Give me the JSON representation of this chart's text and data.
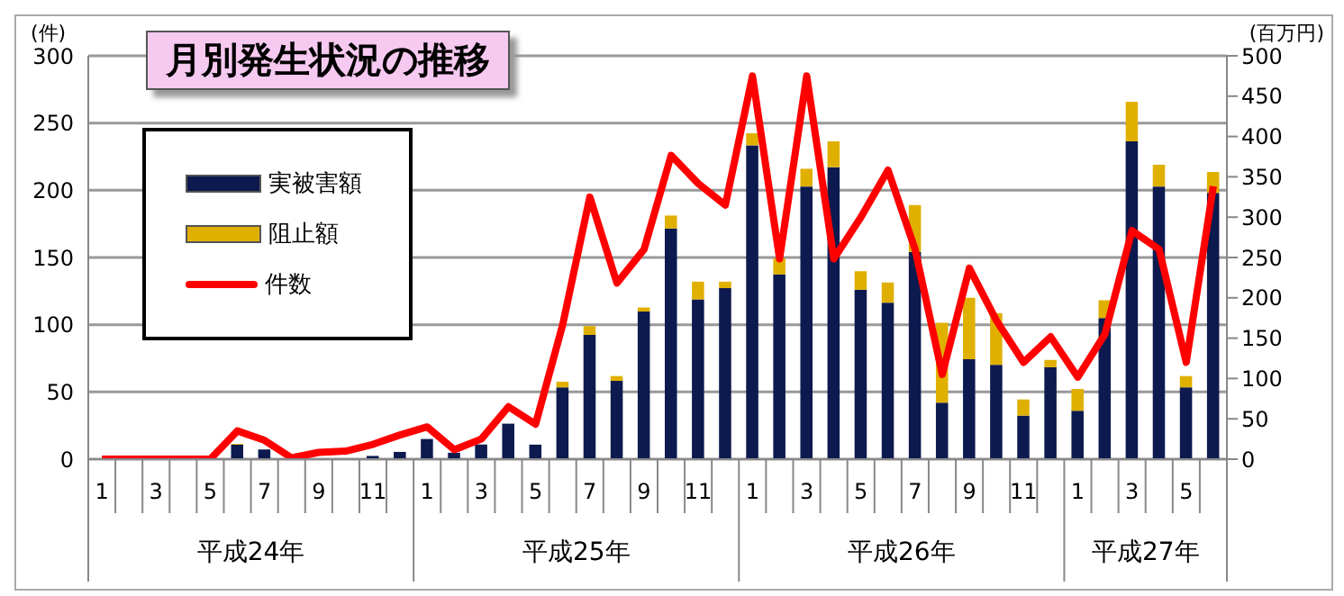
{
  "chart_data": {
    "type": "bar",
    "title": "月別発生状況の推移",
    "ylabel": "(件)",
    "y2label": "(百万円)",
    "categories": [
      "1",
      null,
      "3",
      null,
      "5",
      null,
      "7",
      null,
      "9",
      null,
      "11",
      null,
      "1",
      null,
      "3",
      null,
      "5",
      null,
      "7",
      null,
      "9",
      null,
      "11",
      null,
      "1",
      null,
      "3",
      null,
      "5",
      null,
      "7",
      null,
      "9",
      null,
      "11",
      null,
      "1",
      null,
      "3",
      null,
      "5",
      null
    ],
    "annotations": [
      "平成24年",
      "平成25年",
      "平成26年",
      "平成27年"
    ],
    "stacked": true,
    "series": [
      {
        "name": "実被害額",
        "color": "#0d1a4f",
        "axis": "y2",
        "values": [
          0,
          0,
          0,
          0,
          0,
          18,
          12,
          0,
          0,
          null,
          4,
          9,
          25,
          8,
          18,
          44,
          18,
          89,
          154,
          97,
          183,
          286,
          198,
          212,
          389,
          229,
          338,
          362,
          210,
          194,
          257,
          70,
          124,
          117,
          54,
          114,
          60,
          175,
          394,
          338,
          89,
          330
        ]
      },
      {
        "name": "阻止額",
        "color": "#e0b000",
        "axis": "y2",
        "values": [
          0,
          0,
          0,
          0,
          0,
          1,
          0,
          0,
          0,
          0,
          0,
          0,
          0,
          0,
          0,
          0,
          0,
          7,
          11,
          6,
          5,
          16,
          22,
          8,
          15,
          20,
          22,
          32,
          23,
          25,
          58,
          99,
          76,
          64,
          20,
          9,
          27,
          22,
          49,
          27,
          14,
          26
        ]
      },
      {
        "name": "件数",
        "type": "line",
        "color": "#ff0000",
        "axis": "y",
        "marker": "none",
        "values": [
          0,
          0,
          0,
          0,
          0,
          21,
          14,
          1,
          5,
          6,
          11,
          18,
          24,
          7,
          15,
          39,
          26,
          100,
          195,
          131,
          156,
          226,
          205,
          189,
          285,
          149,
          285,
          149,
          180,
          215,
          156,
          63,
          142,
          103,
          72,
          91,
          61,
          93,
          170,
          156,
          72,
          203
        ]
      }
    ],
    "ylim": [
      0,
      300
    ],
    "yticks": [
      0,
      50,
      100,
      150,
      200,
      250,
      300
    ],
    "y2lim": [
      0,
      500
    ],
    "y2ticks": [
      0,
      50,
      100,
      150,
      200,
      250,
      300,
      350,
      400,
      450,
      500
    ],
    "grid": "y",
    "legend": "top left"
  }
}
